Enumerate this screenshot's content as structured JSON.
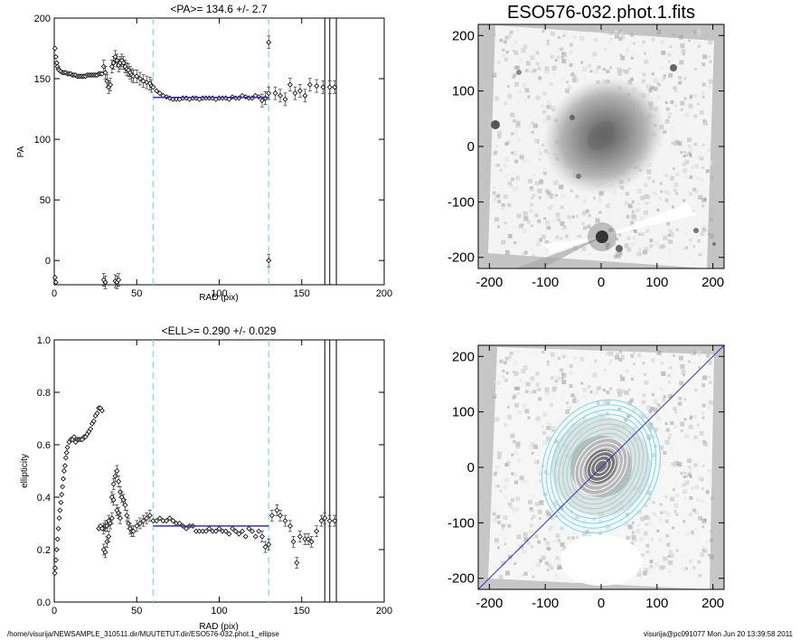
{
  "footer": {
    "path": "/home/visurija/NEWSAMPLE_310511.dir/MUUTETUT.dir/ESO576-032.phot.1_ellipse",
    "stamp": "visurija@pc091077  Mon Jun 20 13:39:58 2011"
  },
  "chart_data": [
    {
      "type": "scatter",
      "title": "<PA>= 134.6 +/-   2.7",
      "xlabel": "RAD (pix)",
      "ylabel": "PA",
      "xlim": [
        0,
        200
      ],
      "ylim": [
        -20,
        200
      ],
      "xticks": [
        "0",
        "50",
        "100",
        "150",
        "200"
      ],
      "yticks": [
        "0",
        "50",
        "100",
        "150",
        "200"
      ],
      "mean_line": {
        "value": 134.6,
        "x_range": [
          60,
          130
        ],
        "color": "#3333aa"
      },
      "cyan_dashed_lines_x": [
        60,
        130
      ],
      "vertical_lines_x": [
        164,
        167,
        171
      ],
      "points": [
        [
          0.5,
          175
        ],
        [
          1,
          168
        ],
        [
          1.5,
          163
        ],
        [
          2,
          160
        ],
        [
          2.5,
          158
        ],
        [
          3,
          157
        ],
        [
          4,
          156
        ],
        [
          5,
          155
        ],
        [
          6,
          155
        ],
        [
          7,
          155
        ],
        [
          8,
          154
        ],
        [
          9,
          154
        ],
        [
          10,
          154
        ],
        [
          11,
          153
        ],
        [
          12,
          153
        ],
        [
          13,
          153
        ],
        [
          14,
          152
        ],
        [
          15,
          152
        ],
        [
          16,
          152
        ],
        [
          17,
          152
        ],
        [
          18,
          152
        ],
        [
          19,
          152
        ],
        [
          20,
          153
        ],
        [
          21,
          153
        ],
        [
          22,
          153
        ],
        [
          23,
          153
        ],
        [
          24,
          153
        ],
        [
          25,
          153
        ],
        [
          26,
          153
        ],
        [
          27,
          154
        ],
        [
          28,
          154
        ],
        [
          29,
          154
        ],
        [
          30,
          160
        ],
        [
          31,
          155
        ],
        [
          32,
          148
        ],
        [
          33,
          143
        ],
        [
          34,
          145
        ],
        [
          35,
          160
        ],
        [
          36,
          163
        ],
        [
          37,
          168
        ],
        [
          38,
          165
        ],
        [
          39,
          161
        ],
        [
          40,
          163
        ],
        [
          41,
          165
        ],
        [
          42,
          163
        ],
        [
          43,
          160
        ],
        [
          44,
          158
        ],
        [
          45,
          157
        ],
        [
          46,
          155
        ],
        [
          47,
          153
        ],
        [
          48,
          152
        ],
        [
          50,
          152
        ],
        [
          52,
          150
        ],
        [
          54,
          148
        ],
        [
          56,
          147
        ],
        [
          58,
          146
        ],
        [
          59,
          144
        ],
        [
          60,
          143
        ],
        [
          62,
          140
        ],
        [
          64,
          138
        ],
        [
          66,
          136
        ],
        [
          68,
          135
        ],
        [
          70,
          134
        ],
        [
          72,
          133
        ],
        [
          74,
          133
        ],
        [
          76,
          133
        ],
        [
          78,
          134
        ],
        [
          80,
          134
        ],
        [
          82,
          133
        ],
        [
          84,
          134
        ],
        [
          86,
          134
        ],
        [
          88,
          133
        ],
        [
          90,
          134
        ],
        [
          92,
          134
        ],
        [
          94,
          134
        ],
        [
          96,
          134
        ],
        [
          98,
          133
        ],
        [
          100,
          134
        ],
        [
          102,
          134
        ],
        [
          104,
          134
        ],
        [
          106,
          133
        ],
        [
          108,
          135
        ],
        [
          110,
          134
        ],
        [
          112,
          134
        ],
        [
          114,
          136
        ],
        [
          116,
          135
        ],
        [
          118,
          134
        ],
        [
          120,
          134
        ],
        [
          122,
          136
        ],
        [
          124,
          135
        ],
        [
          126,
          132
        ],
        [
          128,
          134
        ],
        [
          130,
          138
        ],
        [
          130,
          180
        ],
        [
          130,
          0
        ],
        [
          134,
          138
        ],
        [
          137,
          136
        ],
        [
          140,
          133
        ],
        [
          143,
          145
        ],
        [
          146,
          138
        ],
        [
          149,
          140
        ],
        [
          152,
          136
        ],
        [
          155,
          145
        ],
        [
          159,
          144
        ],
        [
          163,
          143
        ],
        [
          167,
          143
        ],
        [
          170,
          143
        ],
        [
          0.5,
          -14
        ],
        [
          1,
          -18
        ],
        [
          30,
          -16
        ],
        [
          31,
          -18
        ],
        [
          37,
          -17
        ],
        [
          38,
          -18
        ],
        [
          39,
          -16
        ]
      ]
    },
    {
      "type": "scatter",
      "title": "<ELL>= 0.290 +/-  0.029",
      "xlabel": "RAD (pix)",
      "ylabel": "ellipticity",
      "xlim": [
        0,
        200
      ],
      "ylim": [
        0.0,
        1.0
      ],
      "xticks": [
        "0",
        "50",
        "100",
        "150",
        "200"
      ],
      "yticks": [
        "0.0",
        "0.2",
        "0.4",
        "0.6",
        "0.8",
        "1.0"
      ],
      "mean_line": {
        "value": 0.29,
        "x_range": [
          60,
          130
        ],
        "color": "#3333aa"
      },
      "cyan_dashed_lines_x": [
        60,
        130
      ],
      "vertical_lines_x": [
        164,
        167,
        171
      ],
      "points": [
        [
          0.3,
          0.11
        ],
        [
          0.6,
          0.13
        ],
        [
          1,
          0.16
        ],
        [
          1.5,
          0.2
        ],
        [
          2,
          0.24
        ],
        [
          2.5,
          0.28
        ],
        [
          3,
          0.32
        ],
        [
          3.5,
          0.35
        ],
        [
          4,
          0.38
        ],
        [
          4.5,
          0.41
        ],
        [
          5,
          0.44
        ],
        [
          5.5,
          0.47
        ],
        [
          6,
          0.5
        ],
        [
          6.5,
          0.52
        ],
        [
          7,
          0.55
        ],
        [
          7.5,
          0.57
        ],
        [
          8,
          0.59
        ],
        [
          9,
          0.61
        ],
        [
          10,
          0.62
        ],
        [
          11,
          0.62
        ],
        [
          12,
          0.63
        ],
        [
          13,
          0.61
        ],
        [
          14,
          0.62
        ],
        [
          15,
          0.62
        ],
        [
          16,
          0.62
        ],
        [
          17,
          0.62
        ],
        [
          18,
          0.63
        ],
        [
          19,
          0.63
        ],
        [
          20,
          0.64
        ],
        [
          21,
          0.65
        ],
        [
          22,
          0.66
        ],
        [
          23,
          0.68
        ],
        [
          24,
          0.69
        ],
        [
          25,
          0.71
        ],
        [
          26,
          0.72
        ],
        [
          27,
          0.74
        ],
        [
          28,
          0.74
        ],
        [
          29,
          0.73
        ],
        [
          30,
          0.28
        ],
        [
          31,
          0.29
        ],
        [
          32,
          0.29
        ],
        [
          33,
          0.31
        ],
        [
          34,
          0.3
        ],
        [
          35,
          0.4
        ],
        [
          36,
          0.45
        ],
        [
          37,
          0.48
        ],
        [
          38,
          0.5
        ],
        [
          39,
          0.46
        ],
        [
          40,
          0.42
        ],
        [
          41,
          0.4
        ],
        [
          42,
          0.39
        ],
        [
          43,
          0.37
        ],
        [
          44,
          0.33
        ],
        [
          45,
          0.3
        ],
        [
          46,
          0.28
        ],
        [
          47,
          0.27
        ],
        [
          48,
          0.27
        ],
        [
          50,
          0.29
        ],
        [
          52,
          0.3
        ],
        [
          54,
          0.31
        ],
        [
          56,
          0.32
        ],
        [
          58,
          0.33
        ],
        [
          60,
          0.31
        ],
        [
          62,
          0.31
        ],
        [
          64,
          0.32
        ],
        [
          66,
          0.31
        ],
        [
          68,
          0.31
        ],
        [
          70,
          0.32
        ],
        [
          72,
          0.31
        ],
        [
          74,
          0.3
        ],
        [
          76,
          0.3
        ],
        [
          78,
          0.29
        ],
        [
          80,
          0.28
        ],
        [
          82,
          0.29
        ],
        [
          84,
          0.29
        ],
        [
          86,
          0.27
        ],
        [
          88,
          0.27
        ],
        [
          90,
          0.27
        ],
        [
          92,
          0.27
        ],
        [
          94,
          0.28
        ],
        [
          96,
          0.27
        ],
        [
          98,
          0.27
        ],
        [
          100,
          0.28
        ],
        [
          102,
          0.27
        ],
        [
          104,
          0.27
        ],
        [
          106,
          0.26
        ],
        [
          108,
          0.28
        ],
        [
          110,
          0.27
        ],
        [
          112,
          0.26
        ],
        [
          114,
          0.27
        ],
        [
          116,
          0.25
        ],
        [
          118,
          0.28
        ],
        [
          120,
          0.27
        ],
        [
          122,
          0.25
        ],
        [
          124,
          0.27
        ],
        [
          126,
          0.25
        ],
        [
          128,
          0.21
        ],
        [
          130,
          0.22
        ],
        [
          132,
          0.33
        ],
        [
          135,
          0.35
        ],
        [
          137,
          0.33
        ],
        [
          140,
          0.31
        ],
        [
          143,
          0.29
        ],
        [
          145,
          0.23
        ],
        [
          147,
          0.15
        ],
        [
          149,
          0.25
        ],
        [
          152,
          0.24
        ],
        [
          154,
          0.24
        ],
        [
          156,
          0.23
        ],
        [
          159,
          0.27
        ],
        [
          162,
          0.31
        ],
        [
          164,
          0.32
        ],
        [
          167,
          0.31
        ],
        [
          170,
          0.31
        ],
        [
          27,
          0.28
        ],
        [
          28,
          0.29
        ],
        [
          29,
          0.28
        ],
        [
          30,
          0.2
        ],
        [
          31,
          0.19
        ],
        [
          32,
          0.23
        ],
        [
          33,
          0.25
        ],
        [
          35,
          0.32
        ],
        [
          36,
          0.39
        ],
        [
          38,
          0.35
        ],
        [
          39,
          0.34
        ],
        [
          40,
          0.32
        ]
      ]
    },
    {
      "type": "heatmap",
      "title": "ESO576-032.phot.1.fits",
      "xlim": [
        -220,
        220
      ],
      "ylim": [
        -220,
        220
      ],
      "xticks": [
        "-200",
        "-100",
        "0",
        "100",
        "200"
      ],
      "yticks": [
        "-200",
        "-100",
        "0",
        "100",
        "200"
      ]
    },
    {
      "type": "heatmap",
      "title": "",
      "xlim": [
        -220,
        220
      ],
      "ylim": [
        -220,
        220
      ],
      "xticks": [
        "-200",
        "-100",
        "0",
        "100",
        "200"
      ],
      "yticks": [
        "-200",
        "-100",
        "0",
        "100",
        "200"
      ],
      "overlay_line": {
        "from": [
          -220,
          -220
        ],
        "to": [
          220,
          220
        ],
        "color": "#3333bb"
      }
    }
  ]
}
